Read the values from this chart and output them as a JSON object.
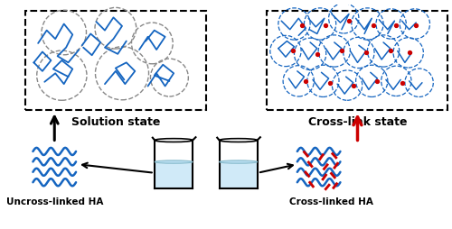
{
  "bg_color": "#ffffff",
  "blue_color": "#1565c0",
  "red_color": "#cc0000",
  "gray_color": "#555555",
  "black_color": "#000000",
  "light_blue": "#d0eaf8",
  "text_solution": "Solution state",
  "text_crosslink": "Cross-link state",
  "text_uncross_ha": "Uncross-linked HA",
  "text_cross_ha": "Cross-linked HA",
  "figsize": [
    5.0,
    2.55
  ],
  "dpi": 100
}
